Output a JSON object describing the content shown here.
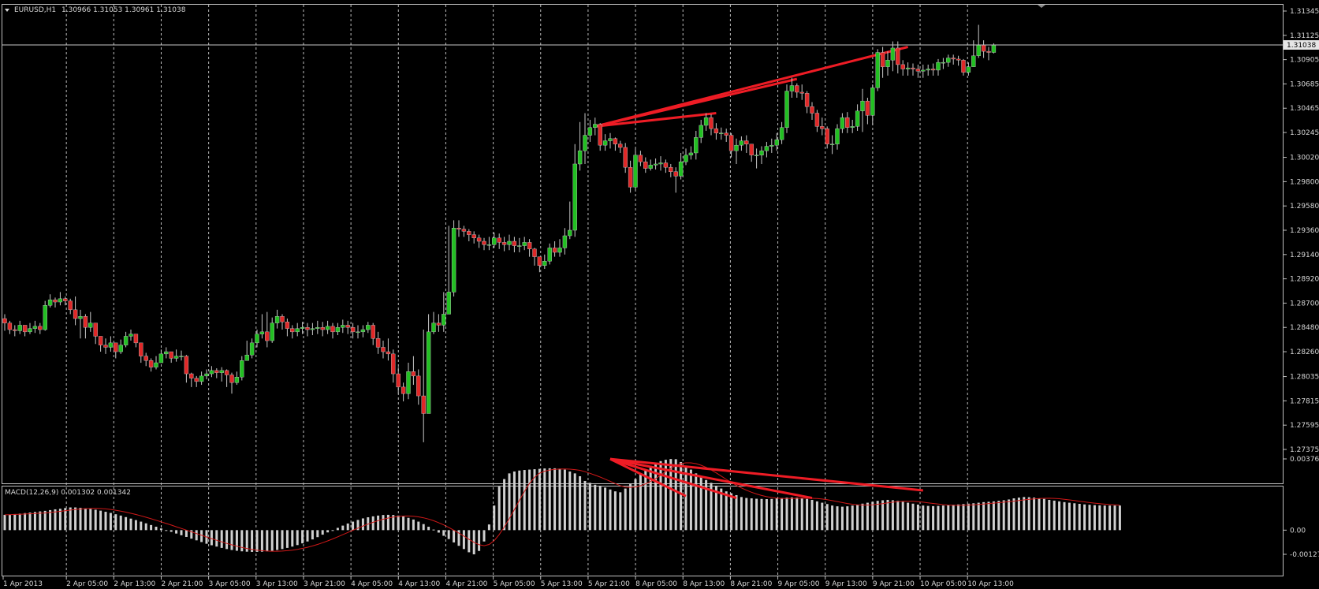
{
  "header": {
    "symbol": "EURUSD,H1",
    "ohlc": "1.30966 1.31053 1.30961 1.31038"
  },
  "indicator": {
    "label": "MACD(12,26,9) 0.001302 0.001342",
    "axis_top": "0.003766",
    "axis_zero": "0.00",
    "axis_bottom": "-0.001278"
  },
  "colors": {
    "background": "#000000",
    "frame": "#c0c0c0",
    "grid": "#bbbbbb",
    "bull": "#22c022",
    "bear": "#e02828",
    "wick": "#c8c8c8",
    "macd_bar": "#d0d0d0",
    "signal": "#d01818",
    "trendline": "#ee1c25"
  },
  "chart_data": [
    {
      "type": "candlestick",
      "ylim": [
        1.27375,
        1.31345
      ],
      "yticks": [
        "1.31345",
        "1.31125",
        "1.30905",
        "1.30685",
        "1.30465",
        "1.30245",
        "1.30020",
        "1.29800",
        "1.29580",
        "1.29360",
        "1.29140",
        "1.28920",
        "1.28700",
        "1.28480",
        "1.28260",
        "1.28035",
        "1.27815",
        "1.27595",
        "1.27375"
      ],
      "xtick_labels": [
        "1 Apr 2013",
        "2 Apr 05:00",
        "2 Apr 13:00",
        "2 Apr 21:00",
        "3 Apr 05:00",
        "3 Apr 13:00",
        "3 Apr 21:00",
        "4 Apr 05:00",
        "4 Apr 13:00",
        "4 Apr 21:00",
        "5 Apr 05:00",
        "5 Apr 13:00",
        "5 Apr 21:00",
        "8 Apr 05:00",
        "8 Apr 13:00",
        "8 Apr 21:00",
        "9 Apr 05:00",
        "9 Apr 13:00",
        "9 Apr 21:00",
        "10 Apr 05:00",
        "10 Apr 13:00"
      ],
      "current_price": "1.31038",
      "current_price_value": 1.31038,
      "trendlines": [
        {
          "from": [
            117,
            1.303
          ],
          "to": [
            179,
            1.3102
          ]
        },
        {
          "from": [
            117,
            1.303
          ],
          "to": [
            157,
            1.3073
          ]
        },
        {
          "from": [
            117,
            1.303
          ],
          "to": [
            141,
            1.3042
          ]
        }
      ],
      "close": [
        1.2852,
        1.2846,
        1.2845,
        1.285,
        1.2844,
        1.2847,
        1.2849,
        1.2846,
        1.2868,
        1.2873,
        1.2871,
        1.2874,
        1.2872,
        1.2864,
        1.2856,
        1.2858,
        1.2848,
        1.2852,
        1.284,
        1.2832,
        1.283,
        1.2834,
        1.2826,
        1.2832,
        1.284,
        1.2842,
        1.2834,
        1.2822,
        1.2818,
        1.2812,
        1.2816,
        1.2824,
        1.2826,
        1.282,
        1.2822,
        1.2822,
        1.2806,
        1.2802,
        1.2799,
        1.2804,
        1.2806,
        1.2809,
        1.2807,
        1.2809,
        1.2805,
        1.2798,
        1.2803,
        1.2818,
        1.2823,
        1.2834,
        1.2842,
        1.2844,
        1.2836,
        1.2852,
        1.2858,
        1.2853,
        1.2847,
        1.2844,
        1.2847,
        1.2848,
        1.2846,
        1.2847,
        1.2848,
        1.2846,
        1.2849,
        1.2844,
        1.2848,
        1.285,
        1.2848,
        1.2844,
        1.2844,
        1.2846,
        1.285,
        1.2838,
        1.283,
        1.2826,
        1.2824,
        1.2806,
        1.2794,
        1.2788,
        1.2808,
        1.2804,
        1.2786,
        1.277,
        1.2844,
        1.2852,
        1.285,
        1.286,
        1.288,
        1.2938,
        1.2937,
        1.2935,
        1.2932,
        1.2929,
        1.2926,
        1.2923,
        1.2923,
        1.2929,
        1.2925,
        1.2923,
        1.2926,
        1.2922,
        1.2922,
        1.2925,
        1.2919,
        1.2912,
        1.2904,
        1.2908,
        1.292,
        1.2916,
        1.292,
        1.2931,
        1.2936,
        1.2996,
        1.3008,
        1.3022,
        1.3029,
        1.3032,
        1.3013,
        1.3017,
        1.3019,
        1.3014,
        1.3011,
        1.2993,
        1.2975,
        1.3004,
        1.2998,
        1.2992,
        1.2995,
        1.2996,
        1.2997,
        1.2993,
        1.2989,
        1.2985,
        1.2998,
        1.3004,
        1.3006,
        1.302,
        1.3031,
        1.3038,
        1.3028,
        1.3024,
        1.3024,
        1.3022,
        1.3008,
        1.3013,
        1.3017,
        1.3014,
        1.3004,
        1.3004,
        1.3008,
        1.3012,
        1.3013,
        1.3018,
        1.3029,
        1.3062,
        1.3067,
        1.3061,
        1.306,
        1.3048,
        1.3042,
        1.303,
        1.3028,
        1.3014,
        1.3014,
        1.3028,
        1.3038,
        1.3029,
        1.303,
        1.3044,
        1.3053,
        1.304,
        1.3065,
        1.3097,
        1.3084,
        1.309,
        1.3101,
        1.3086,
        1.3082,
        1.3083,
        1.3082,
        1.308,
        1.3081,
        1.3082,
        1.3081,
        1.3088,
        1.3088,
        1.3092,
        1.3091,
        1.309,
        1.3079,
        1.3084,
        1.3094,
        1.3104,
        1.3098,
        1.3097,
        1.31038
      ],
      "open_first": 1.2856,
      "high_ext": [
        1.286,
        1.2854,
        1.285,
        1.2854,
        1.285,
        1.2852,
        1.2854,
        1.2852,
        1.2872,
        1.2878,
        1.2875,
        1.288,
        1.2876,
        1.2874,
        1.2876,
        1.2864,
        1.286,
        1.2862,
        1.2846,
        1.284,
        1.2838,
        1.284,
        1.2834,
        1.2837,
        1.2844,
        1.2846,
        1.2842,
        1.2828,
        1.2825,
        1.282,
        1.2822,
        1.2828,
        1.283,
        1.2826,
        1.2828,
        1.2827,
        1.2823,
        1.2807,
        1.2804,
        1.2808,
        1.281,
        1.2813,
        1.2811,
        1.2812,
        1.281,
        1.2807,
        1.2808,
        1.2822,
        1.2836,
        1.2838,
        1.2846,
        1.286,
        1.2862,
        1.2857,
        1.2864,
        1.286,
        1.2856,
        1.285,
        1.2852,
        1.2853,
        1.2852,
        1.2852,
        1.2854,
        1.2853,
        1.2854,
        1.2852,
        1.2852,
        1.2855,
        1.2854,
        1.2852,
        1.285,
        1.285,
        1.2853,
        1.2852,
        1.2844,
        1.2836,
        1.2838,
        1.2828,
        1.2812,
        1.2798,
        1.2816,
        1.2822,
        1.281,
        1.2846,
        1.286,
        1.2862,
        1.286,
        1.288,
        1.294,
        1.2945,
        1.2945,
        1.294,
        1.2937,
        1.2935,
        1.2932,
        1.2929,
        1.293,
        1.2934,
        1.2933,
        1.293,
        1.2932,
        1.293,
        1.2929,
        1.293,
        1.2928,
        1.292,
        1.2912,
        1.2914,
        1.2924,
        1.2926,
        1.2928,
        1.2938,
        1.2962,
        1.3014,
        1.3034,
        1.3042,
        1.3036,
        1.3038,
        1.3033,
        1.3023,
        1.3024,
        1.302,
        1.3017,
        1.3015,
        1.2999,
        1.301,
        1.3008,
        1.3002,
        1.3,
        1.3001,
        1.3003,
        1.3,
        1.2996,
        1.2993,
        1.3006,
        1.301,
        1.3012,
        1.3026,
        1.3036,
        1.3042,
        1.3041,
        1.3033,
        1.3029,
        1.3028,
        1.3024,
        1.3019,
        1.3021,
        1.3022,
        1.3012,
        1.301,
        1.3012,
        1.3016,
        1.3019,
        1.3024,
        1.3034,
        1.3068,
        1.3074,
        1.3069,
        1.3068,
        1.3062,
        1.3052,
        1.3045,
        1.3038,
        1.303,
        1.3022,
        1.3032,
        1.3042,
        1.3043,
        1.3036,
        1.305,
        1.3064,
        1.3056,
        1.3068,
        1.31,
        1.3102,
        1.3098,
        1.3107,
        1.3107,
        1.309,
        1.3088,
        1.3087,
        1.3086,
        1.3086,
        1.3086,
        1.3087,
        1.3091,
        1.3092,
        1.3095,
        1.3095,
        1.3094,
        1.3091,
        1.3088,
        1.3108,
        1.3122,
        1.3108,
        1.3102,
        1.31053
      ],
      "low_ext": [
        1.2845,
        1.2842,
        1.284,
        1.2842,
        1.284,
        1.2842,
        1.2843,
        1.2842,
        1.2845,
        1.2866,
        1.2866,
        1.2868,
        1.2868,
        1.286,
        1.285,
        1.2838,
        1.2838,
        1.2844,
        1.2833,
        1.2826,
        1.2824,
        1.2826,
        1.282,
        1.2824,
        1.283,
        1.2836,
        1.283,
        1.2816,
        1.2813,
        1.2808,
        1.281,
        1.2818,
        1.282,
        1.2816,
        1.2817,
        1.2818,
        1.2798,
        1.2794,
        1.2794,
        1.2796,
        1.2801,
        1.2803,
        1.2802,
        1.2799,
        1.2794,
        1.2788,
        1.2796,
        1.28,
        1.2818,
        1.282,
        1.283,
        1.2838,
        1.283,
        1.2834,
        1.2847,
        1.2846,
        1.284,
        1.2838,
        1.284,
        1.2842,
        1.284,
        1.2841,
        1.2842,
        1.284,
        1.2842,
        1.2838,
        1.2841,
        1.2843,
        1.2842,
        1.2838,
        1.2838,
        1.2839,
        1.2843,
        1.2832,
        1.2824,
        1.282,
        1.2818,
        1.2798,
        1.2788,
        1.2781,
        1.2783,
        1.2796,
        1.2778,
        1.2744,
        1.277,
        1.2842,
        1.2844,
        1.2844,
        1.2862,
        1.2876,
        1.293,
        1.293,
        1.2926,
        1.2924,
        1.292,
        1.2918,
        1.2918,
        1.292,
        1.2919,
        1.2917,
        1.2918,
        1.2916,
        1.2916,
        1.2918,
        1.2912,
        1.2904,
        1.2898,
        1.2901,
        1.2905,
        1.2912,
        1.2912,
        1.2914,
        1.2928,
        1.293,
        1.299,
        1.2996,
        1.3016,
        1.3022,
        1.3008,
        1.3008,
        1.301,
        1.3008,
        1.3006,
        1.2988,
        1.297,
        1.2972,
        1.2994,
        1.2988,
        1.299,
        1.2991,
        1.299,
        1.2988,
        1.2984,
        1.297,
        1.2982,
        1.2995,
        1.3,
        1.3,
        1.3015,
        1.3026,
        1.3022,
        1.3018,
        1.3018,
        1.3016,
        1.3002,
        1.2996,
        1.3008,
        1.3006,
        1.2998,
        1.2992,
        1.2996,
        1.3002,
        1.3006,
        1.3008,
        1.3014,
        1.3024,
        1.3056,
        1.3056,
        1.3054,
        1.3042,
        1.3036,
        1.3025,
        1.3022,
        1.301,
        1.3005,
        1.3009,
        1.3024,
        1.3024,
        1.3024,
        1.3026,
        1.3025,
        1.3032,
        1.3031,
        1.3062,
        1.3074,
        1.3076,
        1.308,
        1.3078,
        1.3076,
        1.3076,
        1.3076,
        1.3074,
        1.3074,
        1.3076,
        1.3076,
        1.3076,
        1.3082,
        1.3084,
        1.3086,
        1.3085,
        1.3076,
        1.3076,
        1.3084,
        1.3092,
        1.3092,
        1.309,
        1.30961
      ]
    },
    {
      "type": "macd",
      "ylim": [
        -0.001278,
        0.003766
      ],
      "yticks": [
        "0.003766",
        "0.00",
        "-0.001278"
      ],
      "histogram": [
        0.00081,
        0.00083,
        0.00085,
        0.00087,
        0.0009,
        0.00093,
        0.00096,
        0.00099,
        0.00102,
        0.00106,
        0.0011,
        0.00113,
        0.00117,
        0.0012,
        0.0012,
        0.00118,
        0.00115,
        0.00112,
        0.00108,
        0.00103,
        0.00097,
        0.00091,
        0.00084,
        0.00077,
        0.00069,
        0.00061,
        0.00053,
        0.00045,
        0.00036,
        0.00027,
        0.00018,
        9e-05,
        0.0,
        -9e-05,
        -0.00018,
        -0.00027,
        -0.00036,
        -0.00045,
        -0.00054,
        -0.00063,
        -0.00072,
        -0.0008,
        -0.00087,
        -0.00094,
        -0.001,
        -0.00105,
        -0.00109,
        -0.00112,
        -0.00114,
        -0.00115,
        -0.00115,
        -0.00114,
        -0.00112,
        -0.00109,
        -0.00105,
        -0.001,
        -0.00094,
        -0.00087,
        -0.00079,
        -0.0007,
        -0.0006,
        -0.00049,
        -0.00037,
        -0.00024,
        -0.00012,
        0.0,
        0.00012,
        0.00024,
        0.00035,
        0.00045,
        0.00054,
        0.00062,
        0.00068,
        0.00073,
        0.00077,
        0.0008,
        0.00081,
        0.0008,
        0.00077,
        0.00072,
        0.00065,
        0.00056,
        0.00045,
        0.00032,
        0.00018,
        3e-05,
        -0.00013,
        -0.0003,
        -0.00047,
        -0.00065,
        -0.00083,
        -0.001,
        -0.00117,
        -0.00128,
        -0.0011,
        -0.0006,
        0.0003,
        0.0013,
        0.0023,
        0.0027,
        0.003,
        0.0031,
        0.00315,
        0.00318,
        0.0032,
        0.00322,
        0.00324,
        0.00326,
        0.00327,
        0.00327,
        0.00325,
        0.0032,
        0.0031,
        0.003,
        0.00285,
        0.0026,
        0.0025,
        0.0024,
        0.00235,
        0.00225,
        0.00215,
        0.00205,
        0.002,
        0.0022,
        0.00245,
        0.0027,
        0.003,
        0.0032,
        0.0034,
        0.00355,
        0.00365,
        0.00372,
        0.00376,
        0.00375,
        0.0036,
        0.0034,
        0.0032,
        0.003,
        0.0028,
        0.00265,
        0.0025,
        0.00235,
        0.0022,
        0.00205,
        0.00195,
        0.00185,
        0.00175,
        0.0017,
        0.00168,
        0.00166,
        0.00165,
        0.00164,
        0.00165,
        0.00168,
        0.0017,
        0.00172,
        0.00173,
        0.00172,
        0.0017,
        0.00165,
        0.0016,
        0.00152,
        0.00145,
        0.00138,
        0.0013,
        0.00126,
        0.00124,
        0.00126,
        0.0013,
        0.00135,
        0.0014,
        0.00145,
        0.0015,
        0.00155,
        0.00158,
        0.0016,
        0.00158,
        0.00155,
        0.0015,
        0.00145,
        0.0014,
        0.00135,
        0.0013,
        0.00128,
        0.00127,
        0.00128,
        0.0013,
        0.00132,
        0.00134,
        0.00136,
        0.00138,
        0.0014,
        0.00142,
        0.00145,
        0.00148,
        0.0015,
        0.00152,
        0.00155,
        0.00158,
        0.00162,
        0.00168,
        0.00172,
        0.00175,
        0.00174,
        0.00172,
        0.00168,
        0.00165,
        0.0016,
        0.00156,
        0.00152,
        0.00148,
        0.00145,
        0.00142,
        0.00139,
        0.00136,
        0.00134,
        0.00132,
        0.00131,
        0.0013,
        0.0013,
        0.0013,
        0.0013
      ],
      "trendlines": [
        {
          "from": [
            120,
            0.00376
          ],
          "to": [
            182,
            0.0021
          ]
        },
        {
          "from": [
            120,
            0.00376
          ],
          "to": [
            160,
            0.0017
          ]
        },
        {
          "from": [
            120,
            0.00376
          ],
          "to": [
            145,
            0.0017
          ]
        },
        {
          "from": [
            120,
            0.00376
          ],
          "to": [
            135,
            0.0018
          ]
        }
      ]
    }
  ]
}
